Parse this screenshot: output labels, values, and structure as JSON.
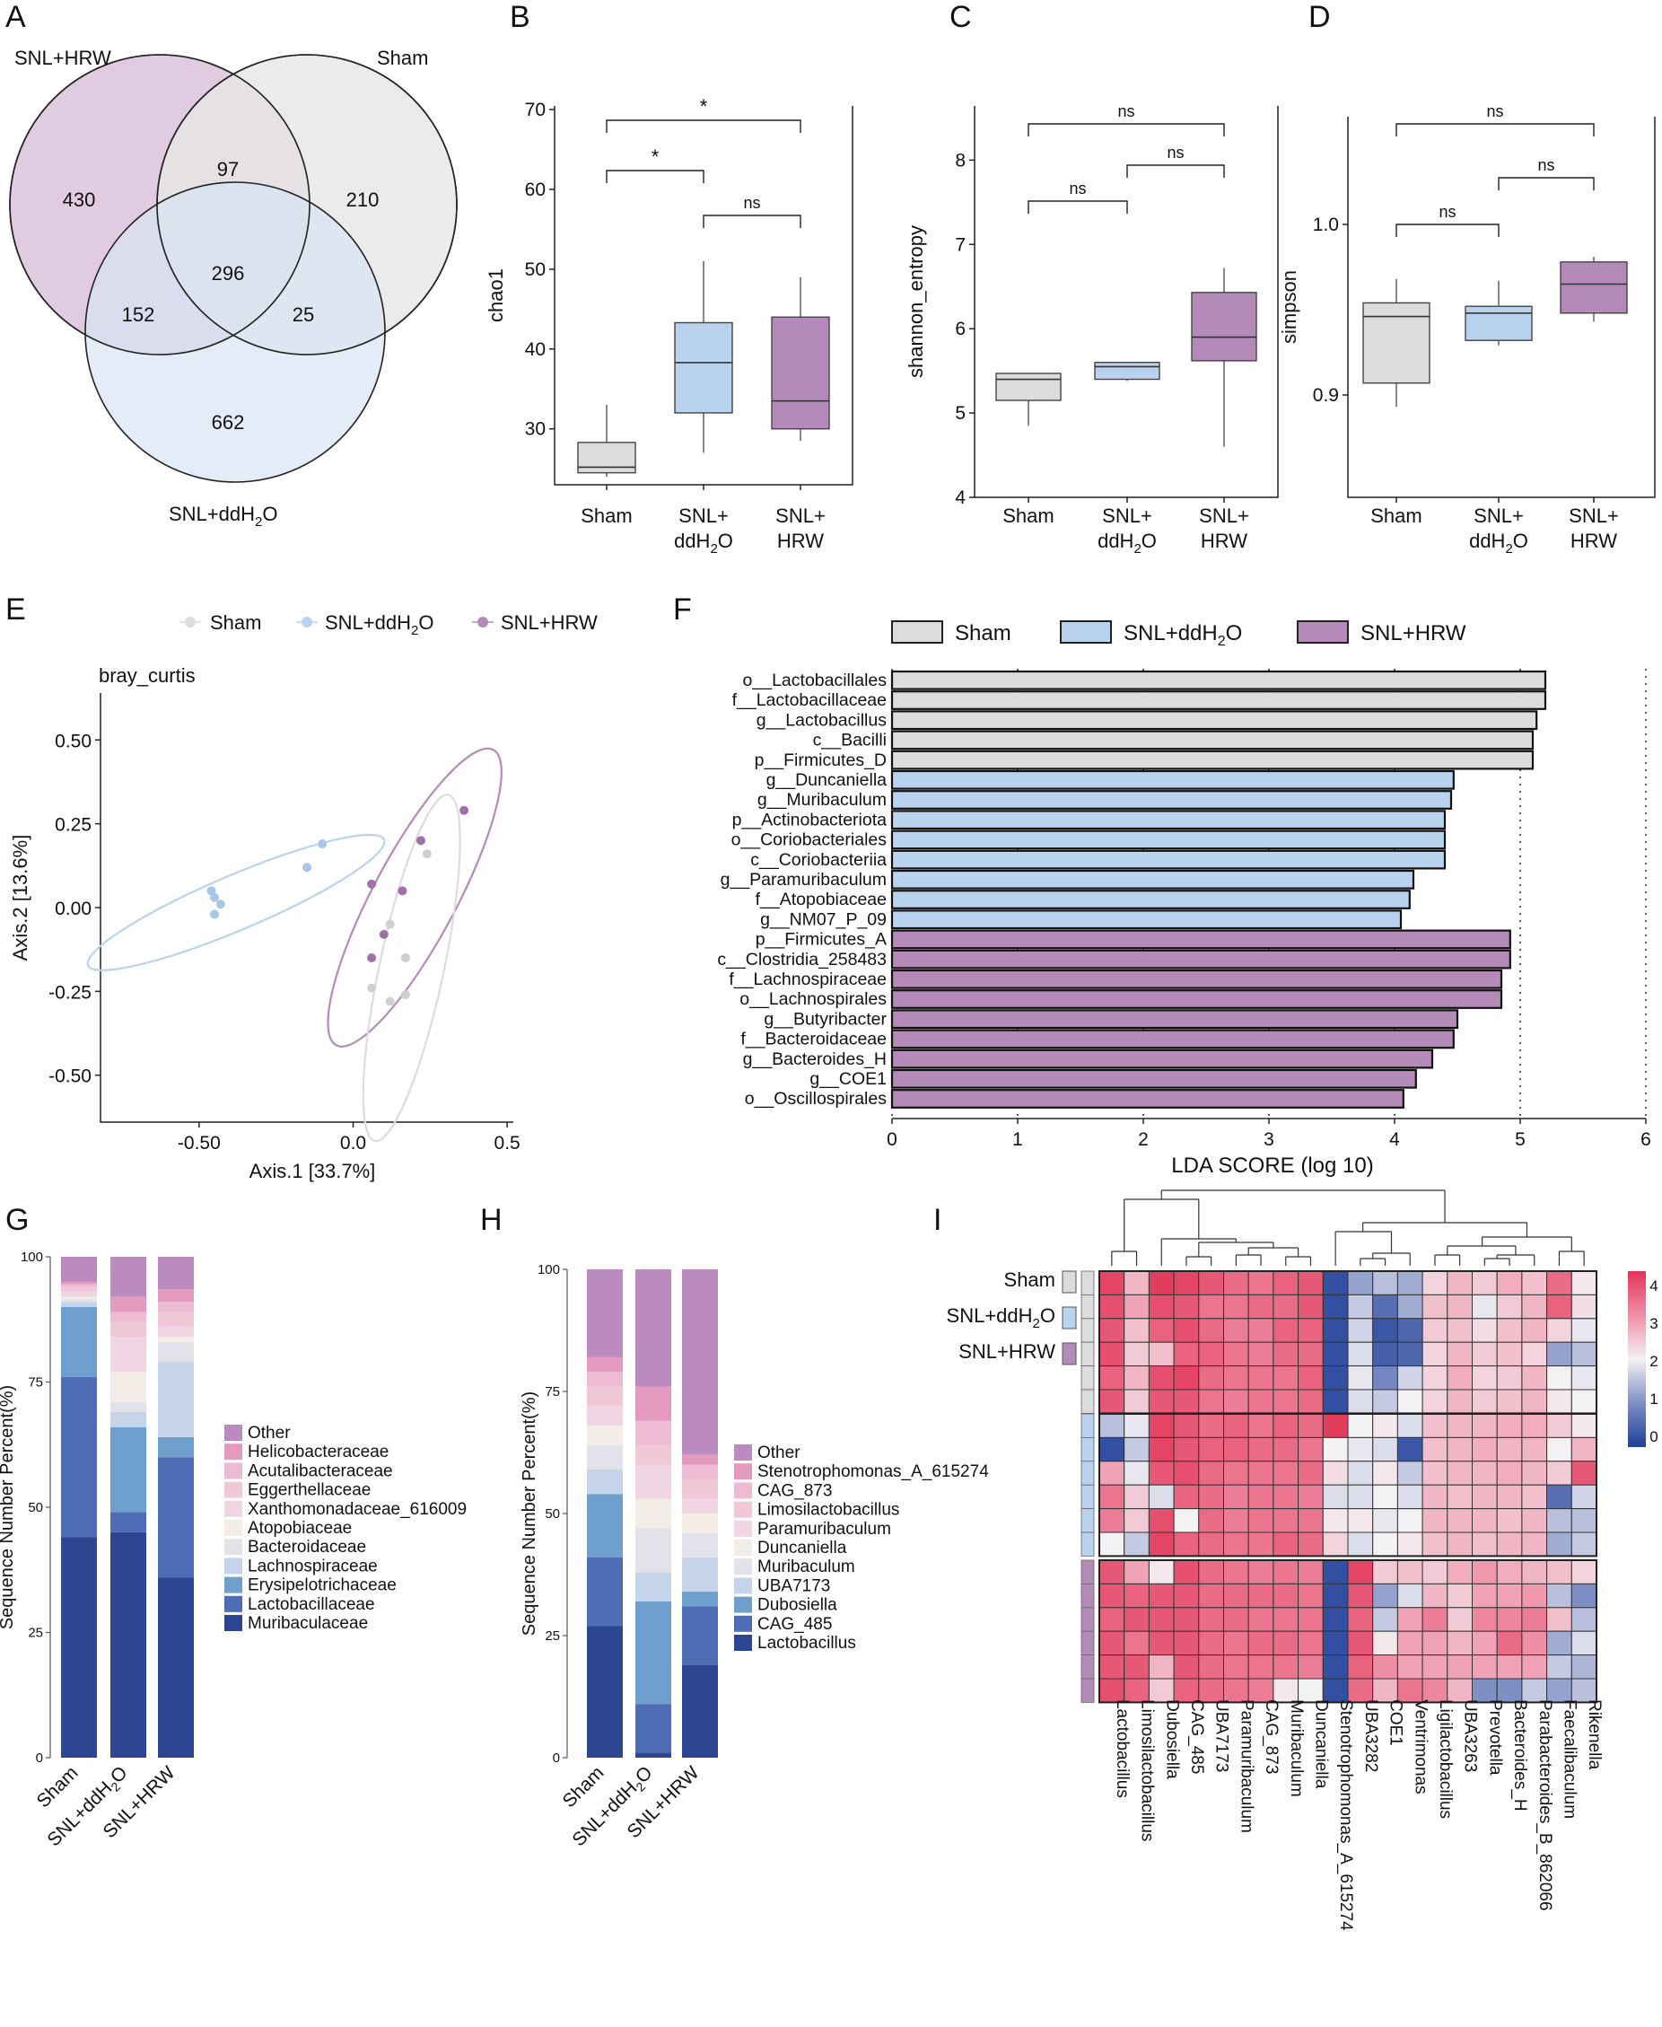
{
  "panel_labels": {
    "A": "A",
    "B": "B",
    "C": "C",
    "D": "D",
    "E": "E",
    "F": "F",
    "G": "G",
    "H": "H",
    "I": "I"
  },
  "colors": {
    "sham": "#dcdcdc",
    "ddh2o": "#b9d3ef",
    "hrw": "#b48bb8",
    "venn_hrw": "#dcc2da",
    "venn_sham": "#e8e8e8",
    "venn_ddh2o": "#d7e4f4"
  },
  "groups": {
    "sham": "Sham",
    "ddh2o_prefix": "SNL+ddH",
    "ddh2o_sub": "2",
    "ddh2o_suffix": "O",
    "hrw": "SNL+HRW",
    "snl_plus": "SNL+",
    "hrw_short": "HRW",
    "dd_short": "ddH"
  },
  "venn": {
    "label_hrw": "SNL+HRW",
    "label_sham": "Sham",
    "label_ddh2o": "SNL+ddH",
    "regions": {
      "hrw_only": "430",
      "hrw_sham": "97",
      "sham_only": "210",
      "all": "296",
      "hrw_dd": "152",
      "sham_dd": "25",
      "dd_only": "662"
    }
  },
  "chart_data": [
    {
      "id": "B",
      "type": "box",
      "ylabel": "chao1",
      "ylim": [
        23,
        70
      ],
      "yticks": [
        30,
        40,
        50,
        60,
        70
      ],
      "categories": [
        "Sham",
        "SNL+ddH2O",
        "SNL+HRW"
      ],
      "boxes": [
        {
          "min": 24,
          "q1": 24.5,
          "median": 25.2,
          "q3": 28.3,
          "max": 33
        },
        {
          "min": 27,
          "q1": 32,
          "median": 38.3,
          "q3": 43.3,
          "max": 51
        },
        {
          "min": 28.5,
          "q1": 30,
          "median": 33.5,
          "q3": 44,
          "max": 49
        }
      ],
      "sig": [
        {
          "a": 0,
          "b": 1,
          "label": "*"
        },
        {
          "a": 1,
          "b": 2,
          "label": "ns"
        },
        {
          "a": 0,
          "b": 2,
          "label": "*"
        }
      ]
    },
    {
      "id": "C",
      "type": "box",
      "ylabel": "shannon_entropy",
      "ylim": [
        4,
        8.6
      ],
      "yticks": [
        4,
        5,
        6,
        7,
        8
      ],
      "categories": [
        "Sham",
        "SNL+ddH2O",
        "SNL+HRW"
      ],
      "boxes": [
        {
          "min": 4.85,
          "q1": 5.15,
          "median": 5.4,
          "q3": 5.47,
          "max": 5.47
        },
        {
          "min": 5.38,
          "q1": 5.4,
          "median": 5.55,
          "q3": 5.6,
          "max": 5.6
        },
        {
          "min": 4.6,
          "q1": 5.62,
          "median": 5.9,
          "q3": 6.43,
          "max": 6.72
        }
      ],
      "sig": [
        {
          "a": 0,
          "b": 1,
          "label": "ns"
        },
        {
          "a": 1,
          "b": 2,
          "label": "ns"
        },
        {
          "a": 0,
          "b": 2,
          "label": "ns"
        }
      ]
    },
    {
      "id": "D",
      "type": "box",
      "ylabel": "simpson",
      "ylim": [
        0.84,
        1.06
      ],
      "yticks": [
        0.9,
        1.0
      ],
      "categories": [
        "Sham",
        "SNL+ddH2O",
        "SNL+HRW"
      ],
      "boxes": [
        {
          "min": 0.893,
          "q1": 0.907,
          "median": 0.946,
          "q3": 0.954,
          "max": 0.968
        },
        {
          "min": 0.929,
          "q1": 0.932,
          "median": 0.948,
          "q3": 0.952,
          "max": 0.967
        },
        {
          "min": 0.943,
          "q1": 0.948,
          "median": 0.965,
          "q3": 0.978,
          "max": 0.981
        }
      ],
      "sig": [
        {
          "a": 0,
          "b": 1,
          "label": "ns"
        },
        {
          "a": 1,
          "b": 2,
          "label": "ns"
        },
        {
          "a": 0,
          "b": 2,
          "label": "ns"
        }
      ]
    },
    {
      "id": "E",
      "type": "scatter",
      "title": "bray_curtis",
      "xlabel": "Axis.1 [33.7%]",
      "ylabel": "Axis.2 [13.6%]",
      "xlim": [
        -0.82,
        0.52
      ],
      "ylim": [
        -0.64,
        0.64
      ],
      "xticks": [
        -0.5,
        0.0,
        0.5
      ],
      "yticks": [
        0.5,
        0.25,
        0.0,
        -0.25,
        -0.5
      ],
      "ytick_labels": [
        "0.50",
        "0.25",
        "0.00",
        "-0.25",
        "-0.50"
      ],
      "xtick_labels": [
        "-0.50",
        "0.0",
        "0.5"
      ],
      "legend": [
        "Sham",
        "SNL+ddH2O",
        "SNL+HRW"
      ],
      "points": {
        "sham": [
          [
            0.24,
            0.16
          ],
          [
            0.12,
            -0.05
          ],
          [
            0.17,
            -0.15
          ],
          [
            0.06,
            -0.24
          ],
          [
            0.12,
            -0.28
          ],
          [
            0.17,
            -0.26
          ]
        ],
        "ddh2o": [
          [
            -0.1,
            0.19
          ],
          [
            -0.15,
            0.12
          ],
          [
            -0.43,
            0.01
          ],
          [
            -0.46,
            0.05
          ],
          [
            -0.45,
            0.03
          ],
          [
            -0.45,
            -0.02
          ]
        ],
        "hrw": [
          [
            0.36,
            0.29
          ],
          [
            0.22,
            0.2
          ],
          [
            0.06,
            0.07
          ],
          [
            0.16,
            0.05
          ],
          [
            0.1,
            -0.08
          ],
          [
            0.06,
            -0.15
          ]
        ]
      },
      "ellipses": [
        {
          "group": "ddh2o",
          "cx": -0.38,
          "cy": 0.015,
          "rx": 0.5,
          "ry": 0.085,
          "angle": -23
        },
        {
          "group": "hrw",
          "cx": 0.2,
          "cy": 0.03,
          "rx": 0.52,
          "ry": 0.13,
          "angle": -62
        },
        {
          "group": "sham",
          "cx": 0.19,
          "cy": -0.18,
          "rx": 0.55,
          "ry": 0.1,
          "angle": -78
        }
      ]
    },
    {
      "id": "F",
      "type": "bar-horizontal",
      "xlabel": "LDA SCORE (log 10)",
      "xlim": [
        0,
        6
      ],
      "xticks": [
        0,
        1,
        2,
        3,
        4,
        5,
        6
      ],
      "legend": [
        "Sham",
        "SNL+ddH2O",
        "SNL+HRW"
      ],
      "bars": [
        {
          "label": "o__Lactobacillales",
          "value": 5.2,
          "group": "sham"
        },
        {
          "label": "f__Lactobacillaceae",
          "value": 5.2,
          "group": "sham"
        },
        {
          "label": "g__Lactobacillus",
          "value": 5.13,
          "group": "sham"
        },
        {
          "label": "c__Bacilli",
          "value": 5.1,
          "group": "sham"
        },
        {
          "label": "p__Firmicutes_D",
          "value": 5.1,
          "group": "sham"
        },
        {
          "label": "g__Duncaniella",
          "value": 4.47,
          "group": "ddh2o"
        },
        {
          "label": "g__Muribaculum",
          "value": 4.45,
          "group": "ddh2o"
        },
        {
          "label": "p__Actinobacteriota",
          "value": 4.4,
          "group": "ddh2o"
        },
        {
          "label": "o__Coriobacteriales",
          "value": 4.4,
          "group": "ddh2o"
        },
        {
          "label": "c__Coriobacteriia",
          "value": 4.4,
          "group": "ddh2o"
        },
        {
          "label": "g__Paramuribaculum",
          "value": 4.15,
          "group": "ddh2o"
        },
        {
          "label": "f__Atopobiaceae",
          "value": 4.12,
          "group": "ddh2o"
        },
        {
          "label": "g__NM07_P_09",
          "value": 4.05,
          "group": "ddh2o"
        },
        {
          "label": "p__Firmicutes_A",
          "value": 4.92,
          "group": "hrw"
        },
        {
          "label": "c__Clostridia_258483",
          "value": 4.92,
          "group": "hrw"
        },
        {
          "label": "f__Lachnospiraceae",
          "value": 4.85,
          "group": "hrw"
        },
        {
          "label": "o__Lachnospirales",
          "value": 4.85,
          "group": "hrw"
        },
        {
          "label": "g__Butyribacter",
          "value": 4.5,
          "group": "hrw"
        },
        {
          "label": "f__Bacteroidaceae",
          "value": 4.47,
          "group": "hrw"
        },
        {
          "label": "g__Bacteroides_H",
          "value": 4.3,
          "group": "hrw"
        },
        {
          "label": "g__COE1",
          "value": 4.17,
          "group": "hrw"
        },
        {
          "label": "o__Oscillospirales",
          "value": 4.07,
          "group": "hrw"
        }
      ]
    },
    {
      "id": "G",
      "type": "stacked-bar",
      "ylabel": "Sequence Number Percent(%)",
      "yticks": [
        0,
        25,
        50,
        75,
        100
      ],
      "categories": [
        "Sham",
        "SNL+ddH2O",
        "SNL+HRW"
      ],
      "series": [
        {
          "name": "Muribaculaceae",
          "color": "#2c4691",
          "values": [
            44,
            45,
            36
          ]
        },
        {
          "name": "Lactobacillaceae",
          "color": "#4f6db4",
          "values": [
            32,
            4,
            24
          ]
        },
        {
          "name": "Erysipelotrichaceae",
          "color": "#6f9fcc",
          "values": [
            14,
            17,
            4
          ]
        },
        {
          "name": "Lachnospiraceae",
          "color": "#c5d4e8",
          "values": [
            1,
            3,
            15
          ]
        },
        {
          "name": "Bacteroidaceae",
          "color": "#e2e2ea",
          "values": [
            0.5,
            2,
            4
          ]
        },
        {
          "name": "Atopobiaceae",
          "color": "#f4ece6",
          "values": [
            0.5,
            6,
            1
          ]
        },
        {
          "name": "Xanthomonadaceae_616009",
          "color": "#f0d6e2",
          "values": [
            1,
            7,
            2
          ]
        },
        {
          "name": "Eggerthellaceae",
          "color": "#f0c8d8",
          "values": [
            1,
            3,
            3
          ]
        },
        {
          "name": "Acutalibacteraceae",
          "color": "#edbcd4",
          "values": [
            0.5,
            2,
            2
          ]
        },
        {
          "name": "Helicobacteraceae",
          "color": "#e39abe",
          "values": [
            0.5,
            3,
            2.5
          ]
        },
        {
          "name": "Other",
          "color": "#bb8bc0",
          "values": [
            5,
            8,
            6.5
          ]
        }
      ]
    },
    {
      "id": "H",
      "type": "stacked-bar",
      "ylabel": "Sequence Number Percent(%)",
      "yticks": [
        0,
        25,
        50,
        75,
        100
      ],
      "categories": [
        "Sham",
        "SNL+ddH2O",
        "SNL+HRW"
      ],
      "series": [
        {
          "name": "Lactobacillus",
          "color": "#2c4691",
          "values": [
            27,
            1,
            19
          ]
        },
        {
          "name": "CAG_485",
          "color": "#4f6db4",
          "values": [
            14,
            10,
            12
          ]
        },
        {
          "name": "Dubosiella",
          "color": "#6f9fcc",
          "values": [
            13,
            21,
            3
          ]
        },
        {
          "name": "UBA7173",
          "color": "#c5d4e8",
          "values": [
            5,
            6,
            7
          ]
        },
        {
          "name": "Muribaculum",
          "color": "#e2e2ea",
          "values": [
            5,
            9,
            5
          ]
        },
        {
          "name": "Duncaniella",
          "color": "#f4ece6",
          "values": [
            4,
            6,
            4
          ]
        },
        {
          "name": "Paramuribaculum",
          "color": "#f0d6e2",
          "values": [
            4,
            7,
            3
          ]
        },
        {
          "name": "Limosilactobacillus",
          "color": "#f0c8d8",
          "values": [
            4,
            4,
            4
          ]
        },
        {
          "name": "CAG_873",
          "color": "#edbcd4",
          "values": [
            3,
            5,
            3
          ]
        },
        {
          "name": "Stenotrophomonas_A_615274",
          "color": "#e39abe",
          "values": [
            3,
            7,
            2
          ]
        },
        {
          "name": "Other",
          "color": "#bb8bc0",
          "values": [
            18,
            24,
            38
          ]
        }
      ]
    },
    {
      "id": "I",
      "type": "heatmap",
      "legend_ticks": [
        "4",
        "3",
        "2",
        "1",
        "0"
      ],
      "row_groups": [
        "Sham",
        "SNL+ddH2O",
        "SNL+HRW"
      ],
      "columns": [
        "Lactobacillus",
        "Limosilactobacillus",
        "Dubosiella",
        "CAG_485",
        "UBA7173",
        "Paramuribaculum",
        "CAG_873",
        "Muribaculum",
        "Duncaniella",
        "Stenotrophomonas_A_615274",
        "UBA3282",
        "COE1",
        "Ventrimonas",
        "Ligilactobacillus",
        "UBA3263",
        "Prevotella",
        "Bacteroides_H",
        "Parabacteroides_B_862066",
        "Faecalibaculum",
        "Rikenella"
      ],
      "rows": [
        [
          3.8,
          2.6,
          3.9,
          3.8,
          3.6,
          3.4,
          3.3,
          3.5,
          3.6,
          0.2,
          1.2,
          1.5,
          1.3,
          2.3,
          2.6,
          2.4,
          2.7,
          2.5,
          3.4,
          2.1
        ],
        [
          3.7,
          2.8,
          3.7,
          3.6,
          3.3,
          3.3,
          3.4,
          3.4,
          3.6,
          0.2,
          1.6,
          0.6,
          1.3,
          2.5,
          2.6,
          1.9,
          2.4,
          2.6,
          3.5,
          2.2
        ],
        [
          3.6,
          2.5,
          3.5,
          3.7,
          3.4,
          3.2,
          3.2,
          3.5,
          3.5,
          0.2,
          1.7,
          0.3,
          0.5,
          2.4,
          2.5,
          2.2,
          2.5,
          2.6,
          2.3,
          1.9
        ],
        [
          3.7,
          2.4,
          2.5,
          3.5,
          3.5,
          3.3,
          3.2,
          3.4,
          3.4,
          0.2,
          1.8,
          0.4,
          0.5,
          2.3,
          2.6,
          2.4,
          2.5,
          2.3,
          1.2,
          1.5
        ],
        [
          3.5,
          2.6,
          3.7,
          3.8,
          3.4,
          3.3,
          3.3,
          3.3,
          3.5,
          0.2,
          1.9,
          0.9,
          1.7,
          2.3,
          2.7,
          2.3,
          2.4,
          2.6,
          2.0,
          1.9
        ],
        [
          3.6,
          2.4,
          3.6,
          3.6,
          3.3,
          3.2,
          3.3,
          3.3,
          3.4,
          0.2,
          1.8,
          1.6,
          2.0,
          2.3,
          2.6,
          2.4,
          2.5,
          2.6,
          2.1,
          2.0
        ],
        [
          1.5,
          1.9,
          3.8,
          3.6,
          3.4,
          3.5,
          3.3,
          3.5,
          3.4,
          3.9,
          2.0,
          2.1,
          1.8,
          2.5,
          2.6,
          2.6,
          2.7,
          2.7,
          2.4,
          2.1
        ],
        [
          0.2,
          1.6,
          3.8,
          3.6,
          3.5,
          3.5,
          3.4,
          3.4,
          3.3,
          2.0,
          1.9,
          1.8,
          0.3,
          2.5,
          2.6,
          2.7,
          2.6,
          2.6,
          2.0,
          2.6
        ],
        [
          2.8,
          1.9,
          3.6,
          3.7,
          3.4,
          3.3,
          3.3,
          3.3,
          3.4,
          2.2,
          1.8,
          2.1,
          1.6,
          2.5,
          2.6,
          2.6,
          2.7,
          2.6,
          2.4,
          3.6
        ],
        [
          3.3,
          2.4,
          1.8,
          3.5,
          3.4,
          3.2,
          3.3,
          3.3,
          3.2,
          1.8,
          1.8,
          2.0,
          1.8,
          2.6,
          2.5,
          2.6,
          2.6,
          2.5,
          0.6,
          1.7
        ],
        [
          3.2,
          2.4,
          3.7,
          2.0,
          3.4,
          3.2,
          3.3,
          3.3,
          3.3,
          2.1,
          2.1,
          1.9,
          2.0,
          2.6,
          2.6,
          2.6,
          2.5,
          2.6,
          1.5,
          1.5
        ],
        [
          2.0,
          1.6,
          3.8,
          3.5,
          3.4,
          3.3,
          3.3,
          3.5,
          3.4,
          2.3,
          1.8,
          2.0,
          2.1,
          2.5,
          2.6,
          2.5,
          2.6,
          2.6,
          1.3,
          1.6
        ],
        [
          3.6,
          2.8,
          2.1,
          3.7,
          3.4,
          3.3,
          3.2,
          3.3,
          3.2,
          0.2,
          3.8,
          2.4,
          2.5,
          2.4,
          2.7,
          2.9,
          2.7,
          2.6,
          2.5,
          2.3
        ],
        [
          3.6,
          3.5,
          3.6,
          3.6,
          3.4,
          3.4,
          3.4,
          3.4,
          3.3,
          0.2,
          3.6,
          1.2,
          1.8,
          2.6,
          2.4,
          2.8,
          2.8,
          2.9,
          1.5,
          1.0
        ],
        [
          3.5,
          3.6,
          3.6,
          3.6,
          3.4,
          3.4,
          3.3,
          3.3,
          3.3,
          0.2,
          3.5,
          1.6,
          2.8,
          3.2,
          2.4,
          3.1,
          3.1,
          3.2,
          2.5,
          1.5
        ],
        [
          3.6,
          3.3,
          3.6,
          3.6,
          3.4,
          3.3,
          3.4,
          3.4,
          3.3,
          0.2,
          3.6,
          2.1,
          2.8,
          2.8,
          2.6,
          2.8,
          3.4,
          3.0,
          1.3,
          1.8
        ],
        [
          3.6,
          3.6,
          2.6,
          3.6,
          3.4,
          3.3,
          3.3,
          3.3,
          3.2,
          0.2,
          3.5,
          3.0,
          2.8,
          2.8,
          2.8,
          2.8,
          2.8,
          2.8,
          1.6,
          1.4
        ],
        [
          3.7,
          3.5,
          2.4,
          3.5,
          3.4,
          3.3,
          3.2,
          2.1,
          2.0,
          0.2,
          3.4,
          2.6,
          3.3,
          3.1,
          2.6,
          1.0,
          1.0,
          1.6,
          1.2,
          1.5
        ]
      ]
    }
  ]
}
